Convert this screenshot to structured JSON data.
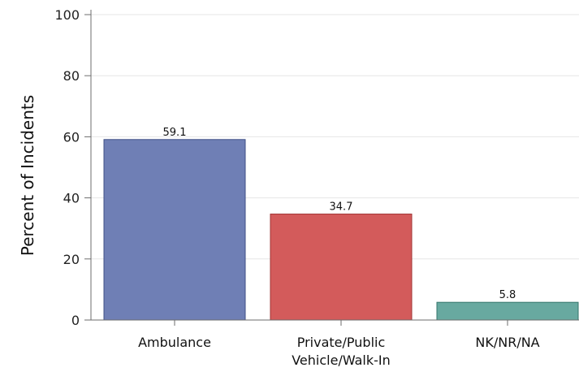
{
  "chart_data": {
    "type": "bar",
    "title": "",
    "xlabel": "",
    "ylabel": "Percent of Incidents",
    "ylim": [
      0,
      100
    ],
    "yticks": [
      0,
      20,
      40,
      60,
      80,
      100
    ],
    "grid": true,
    "legend": "none",
    "categories": [
      [
        "Ambulance"
      ],
      [
        "Private/Public",
        "Vehicle/Walk-In"
      ],
      [
        "NK/NR/NA"
      ]
    ],
    "values": [
      59.1,
      34.7,
      5.8
    ],
    "value_labels": [
      "59.1",
      "34.7",
      "5.8"
    ],
    "colors": [
      "#6f7fb5",
      "#d35b5b",
      "#68a9a0"
    ],
    "edge_colors": [
      "#3f4f85",
      "#a23535",
      "#35756b"
    ]
  }
}
